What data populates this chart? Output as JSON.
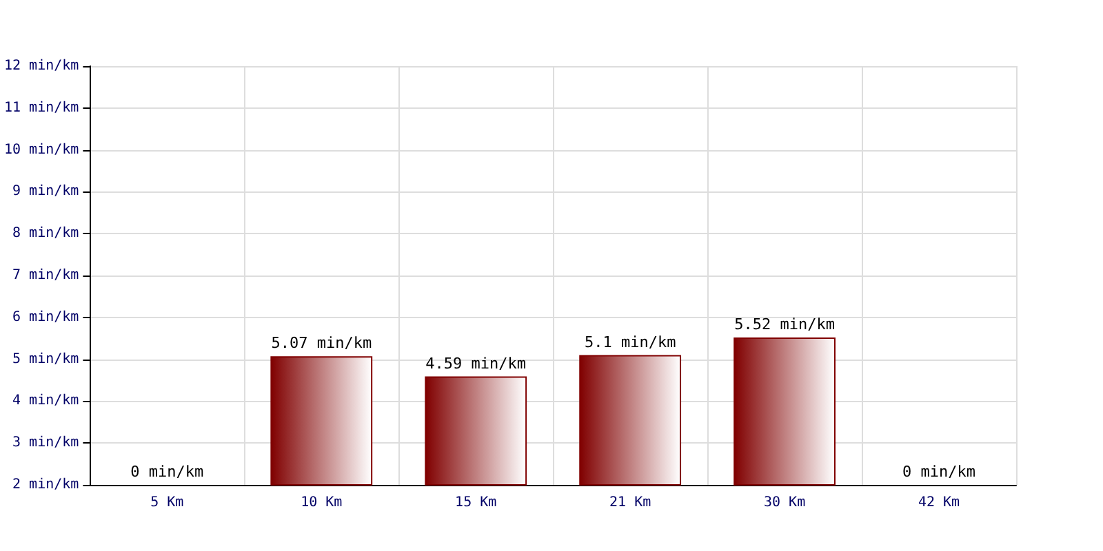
{
  "chart_data": {
    "type": "bar",
    "categories": [
      "5 Km",
      "10 Km",
      "15 Km",
      "21 Km",
      "30 Km",
      "42 Km"
    ],
    "values": [
      null,
      5.07,
      4.59,
      5.1,
      5.52,
      null
    ],
    "value_labels": [
      "0 min/km",
      "5.07 min/km",
      "4.59 min/km",
      "5.1 min/km",
      "5.52 min/km",
      "0 min/km"
    ],
    "color": "#800000",
    "ylim": [
      2,
      12
    ],
    "yticks": [
      {
        "value": 2,
        "label": "2 min/km"
      },
      {
        "value": 3,
        "label": "3 min/km"
      },
      {
        "value": 4,
        "label": "4 min/km"
      },
      {
        "value": 5,
        "label": "5 min/km"
      },
      {
        "value": 6,
        "label": "6 min/km"
      },
      {
        "value": 7,
        "label": "7 min/km"
      },
      {
        "value": 8,
        "label": "8 min/km"
      },
      {
        "value": 9,
        "label": "9 min/km"
      },
      {
        "value": 10,
        "label": "10 min/km"
      },
      {
        "value": 11,
        "label": "11 min/km"
      },
      {
        "value": 12,
        "label": "12 min/km"
      }
    ],
    "grid": true
  }
}
